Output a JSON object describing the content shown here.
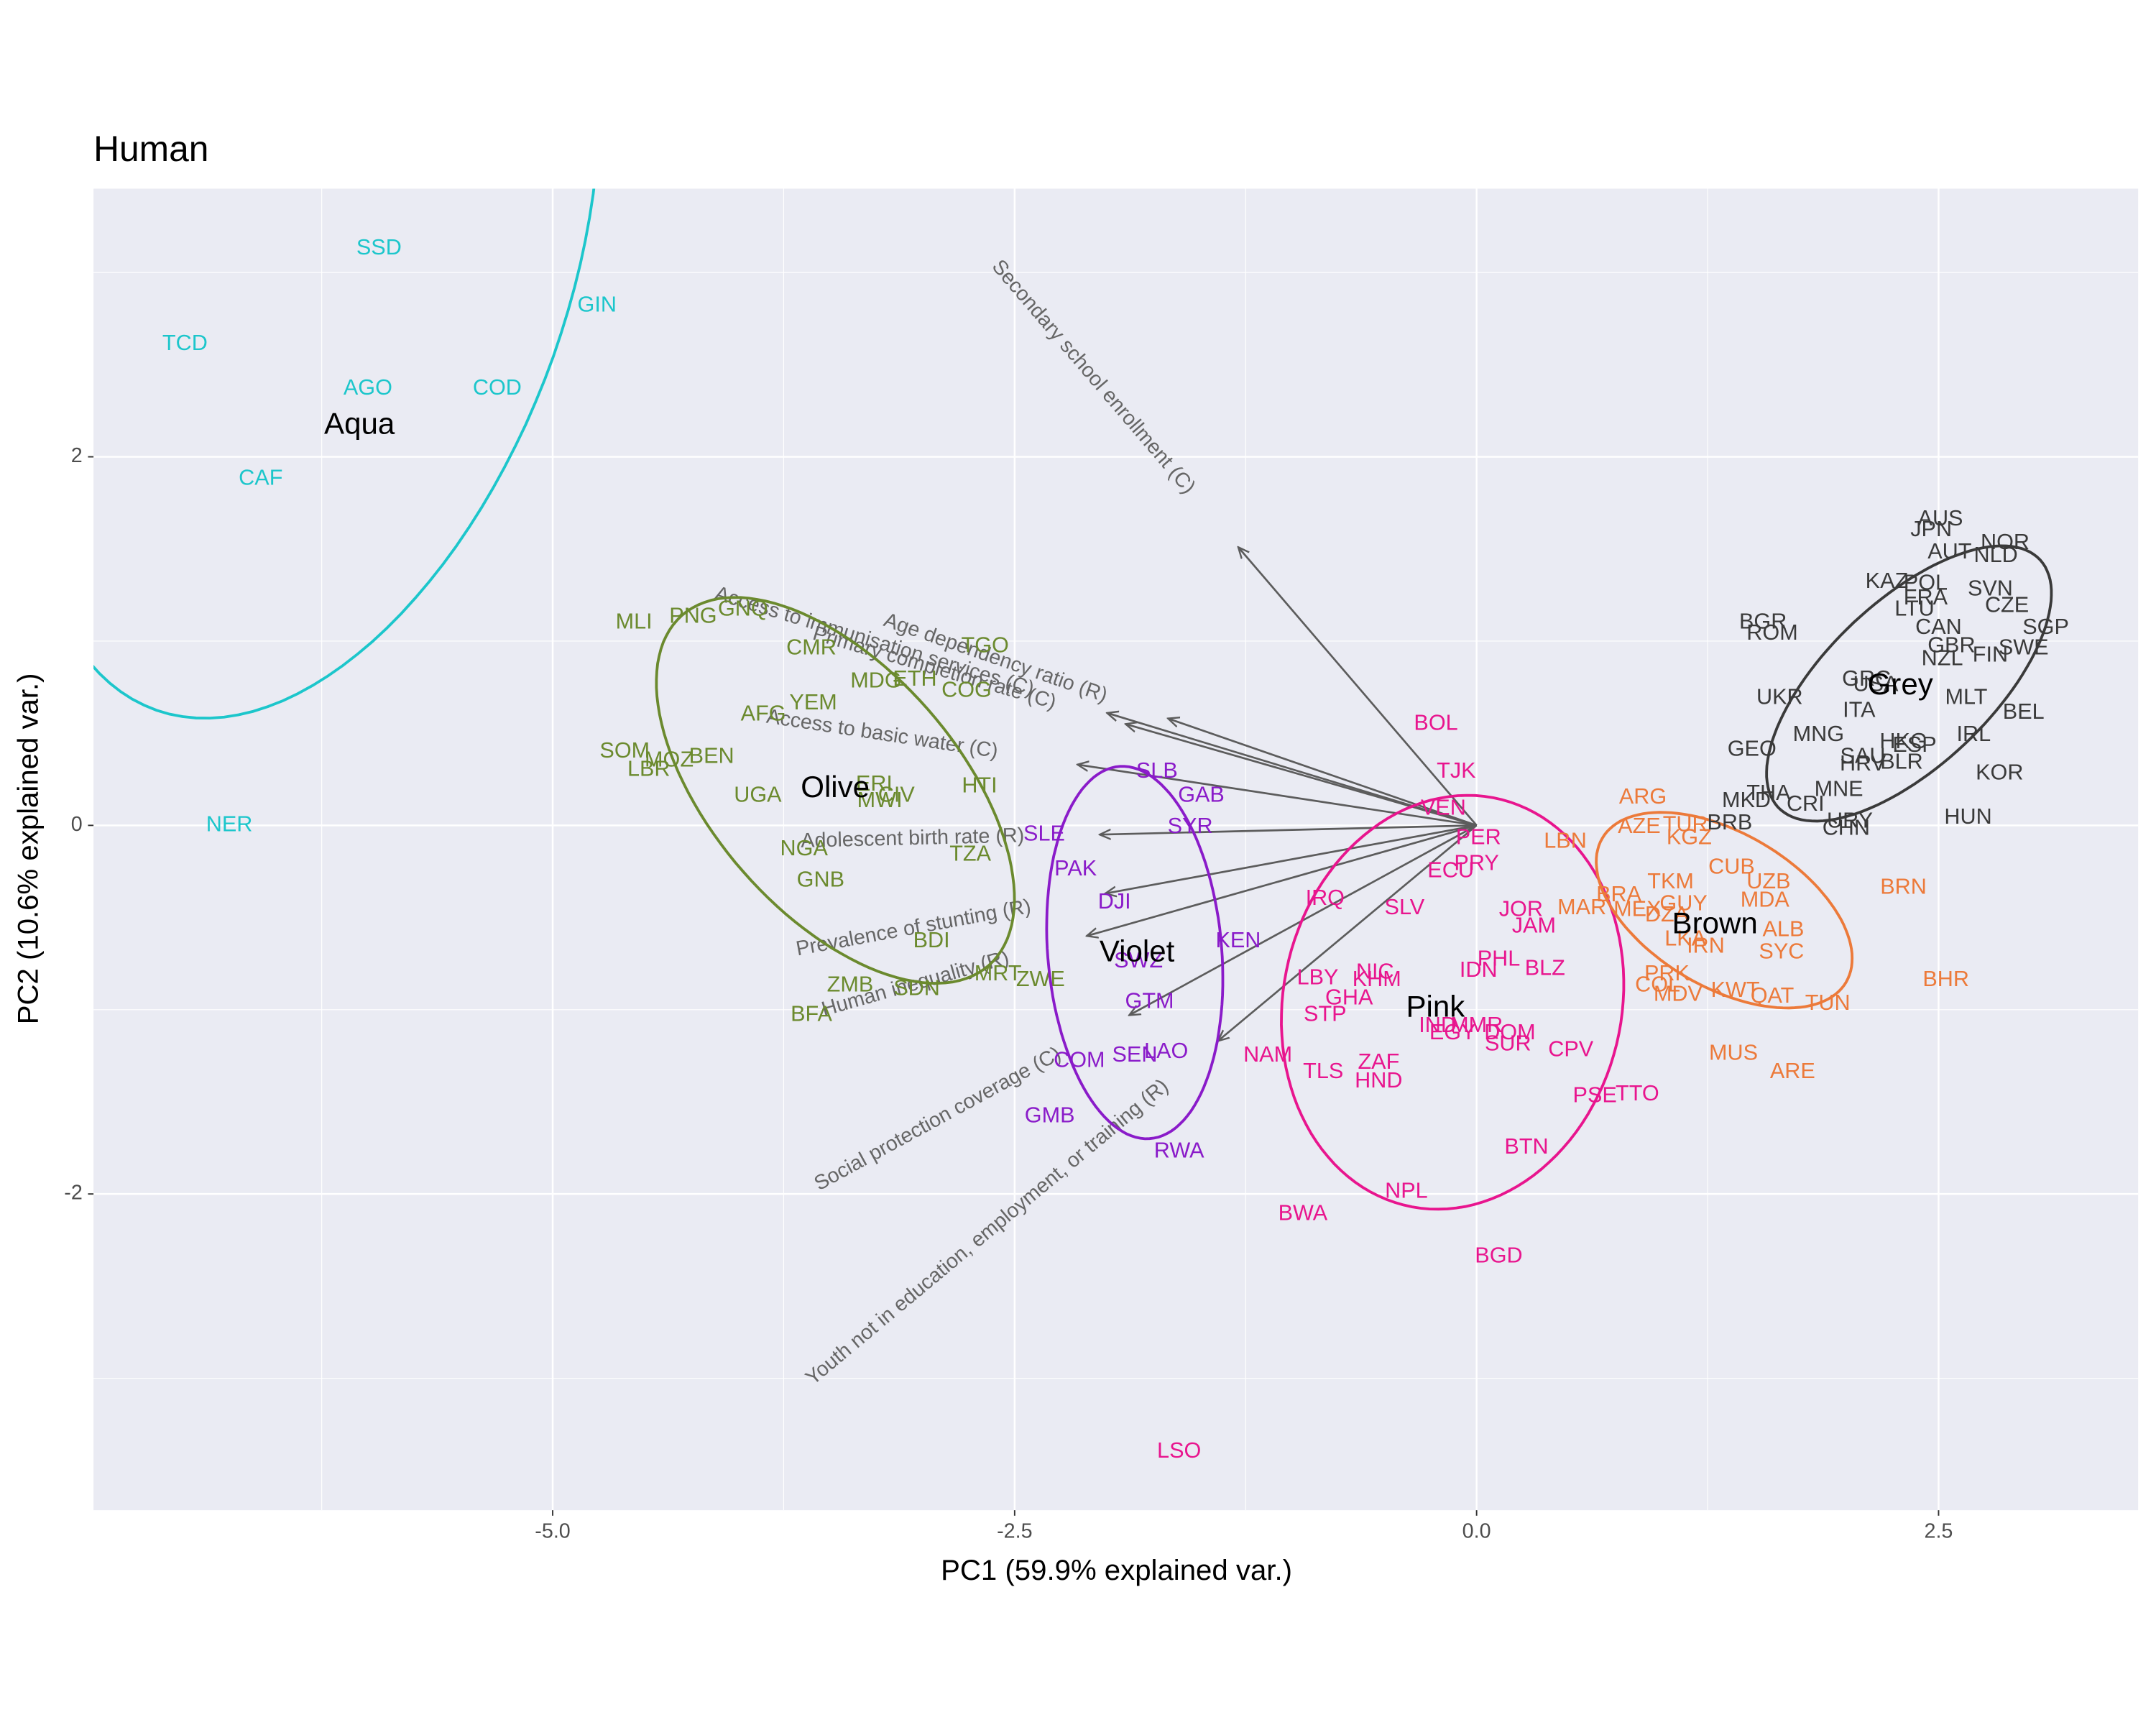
{
  "chart_data": {
    "type": "biplot",
    "title": "Human",
    "x_label": "PC1 (59.9% explained var.)",
    "y_label": "PC2 (10.6% explained var.)",
    "xlim": [
      -7.485,
      3.58
    ],
    "ylim": [
      -3.716,
      3.455
    ],
    "xticks": [
      {
        "value": -5,
        "label": "-5.0"
      },
      {
        "value": -2.5,
        "label": "-2.5"
      },
      {
        "value": 0,
        "label": "0.0"
      },
      {
        "value": 2.5,
        "label": "2.5"
      }
    ],
    "yticks": [
      -2,
      0,
      2
    ],
    "grid": true,
    "panel_color": "#EAEBF3",
    "arrow_color": "#5c5c5c",
    "arrow_label_color": "#666666",
    "series": [
      {
        "name": "Aqua",
        "color": "#1CC6CB",
        "labels": [
          "SSD",
          "GIN",
          "TCD",
          "AGO",
          "COD",
          "CAF",
          "NER"
        ],
        "x": [
          -5.94,
          -4.76,
          -6.99,
          -6.0,
          -5.3,
          -6.58,
          -6.75
        ],
        "y": [
          3.13,
          2.82,
          2.61,
          2.37,
          2.37,
          1.88,
          0.0
        ],
        "ellipse": {
          "center": [
            -6.3,
            3.0
          ],
          "axis1": [
            -0.4,
            -2.4
          ],
          "axis2": [
            1.5,
            0.3
          ]
        }
      },
      {
        "name": "Olive",
        "color": "#6B8A2E",
        "labels": [
          "MLI",
          "PNG",
          "GNQ",
          "CMR",
          "TGO",
          "YEM",
          "AFG",
          "MDG",
          "ETH",
          "COG",
          "SOM",
          "MOZ",
          "LBR",
          "BEN",
          "UGA",
          "ERI",
          "CIV",
          "MWI",
          "HTI",
          "NGA",
          "GNB",
          "TZA",
          "BDI",
          "ZMB",
          "SDN",
          "MRT",
          "ZWE",
          "BFA"
        ],
        "x": [
          -4.56,
          -4.24,
          -3.97,
          -3.6,
          -2.66,
          -3.59,
          -3.86,
          -3.25,
          -3.04,
          -2.76,
          -4.61,
          -4.37,
          -4.48,
          -4.14,
          -3.89,
          -3.26,
          -3.14,
          -3.23,
          -2.69,
          -3.64,
          -3.55,
          -2.74,
          -2.95,
          -3.39,
          -3.03,
          -2.59,
          -2.36,
          -3.6
        ],
        "y": [
          1.1,
          1.13,
          1.17,
          0.96,
          0.97,
          0.66,
          0.6,
          0.78,
          0.79,
          0.73,
          0.4,
          0.35,
          0.3,
          0.37,
          0.16,
          0.22,
          0.16,
          0.13,
          0.21,
          -0.13,
          -0.3,
          -0.16,
          -0.63,
          -0.87,
          -0.89,
          -0.81,
          -0.84,
          -1.03
        ],
        "ellipse": {
          "center": [
            -3.47,
            0.19
          ],
          "axis1": [
            0.83,
            -0.95
          ],
          "axis2": [
            0.5,
            0.44
          ]
        }
      },
      {
        "name": "Violet",
        "color": "#8A1BC9",
        "labels": [
          "SLB",
          "GAB",
          "SYR",
          "SLE",
          "PAK",
          "DJI",
          "KEN",
          "SWZ",
          "GTM",
          "COM",
          "SEN",
          "LAO",
          "GMB",
          "RWA"
        ],
        "x": [
          -1.73,
          -1.49,
          -1.55,
          -2.34,
          -2.17,
          -1.96,
          -1.29,
          -1.83,
          -1.77,
          -2.15,
          -1.85,
          -1.68,
          -2.31,
          -1.61
        ],
        "y": [
          0.29,
          0.16,
          -0.01,
          -0.05,
          -0.24,
          -0.42,
          -0.63,
          -0.74,
          -0.96,
          -1.28,
          -1.25,
          -1.23,
          -1.58,
          -1.77
        ],
        "ellipse": {
          "center": [
            -1.85,
            -0.69
          ],
          "axis1": [
            0.08,
            -1.01
          ],
          "axis2": [
            0.47,
            0.03
          ]
        }
      },
      {
        "name": "Pink",
        "color": "#E8158E",
        "labels": [
          "BOL",
          "TJK",
          "VEN",
          "PER",
          "PRY",
          "ECU",
          "IRQ",
          "SLV",
          "JOR",
          "JAM",
          "PHL",
          "IDN",
          "BLZ",
          "LBY",
          "NIC",
          "KHM",
          "GHA",
          "STP",
          "IND",
          "MMR",
          "EGY",
          "DOM",
          "SUR",
          "CPV",
          "NAM",
          "TLS",
          "ZAF",
          "HND",
          "PSE",
          "TTO",
          "BTN",
          "NPL",
          "BWA",
          "BGD",
          "LSO"
        ],
        "x": [
          -0.22,
          -0.11,
          -0.18,
          0.01,
          0.0,
          -0.14,
          -0.82,
          -0.39,
          0.24,
          0.31,
          0.12,
          0.01,
          0.37,
          -0.86,
          -0.55,
          -0.54,
          -0.69,
          -0.82,
          -0.21,
          0.0,
          -0.13,
          0.18,
          0.17,
          0.51,
          -1.13,
          -0.83,
          -0.53,
          -0.53,
          0.64,
          0.87,
          0.27,
          -0.38,
          -0.94,
          0.12,
          -1.61
        ],
        "y": [
          0.55,
          0.29,
          0.09,
          -0.07,
          -0.21,
          -0.25,
          -0.4,
          -0.45,
          -0.46,
          -0.55,
          -0.73,
          -0.79,
          -0.78,
          -0.83,
          -0.8,
          -0.84,
          -0.94,
          -1.03,
          -1.09,
          -1.09,
          -1.13,
          -1.13,
          -1.19,
          -1.22,
          -1.25,
          -1.34,
          -1.29,
          -1.39,
          -1.47,
          -1.46,
          -1.75,
          -1.99,
          -2.11,
          -2.34,
          -3.4
        ],
        "ellipse": {
          "center": [
            -0.13,
            -0.96
          ],
          "axis1": [
            0.22,
            1.11
          ],
          "axis2": [
            0.9,
            -0.17
          ]
        }
      },
      {
        "name": "Brown",
        "color": "#EC7A3A",
        "labels": [
          "ARG",
          "AZE",
          "LBN",
          "TUR",
          "KGZ",
          "CUB",
          "UZB",
          "TKM",
          "MAR",
          "BRA",
          "MEX",
          "GUY",
          "DZA",
          "MDA",
          "ALB",
          "LKA",
          "IRN",
          "SYC",
          "PRK",
          "COL",
          "MDV",
          "KWT",
          "QAT",
          "TUN",
          "MUS",
          "ARE",
          "BRN",
          "BHR"
        ],
        "x": [
          0.9,
          0.88,
          0.48,
          1.13,
          1.15,
          1.38,
          1.58,
          1.05,
          0.57,
          0.77,
          0.87,
          1.12,
          1.03,
          1.56,
          1.66,
          1.13,
          1.24,
          1.65,
          1.03,
          0.98,
          1.09,
          1.4,
          1.6,
          1.9,
          1.39,
          1.71,
          2.31,
          2.54
        ],
        "y": [
          0.15,
          -0.01,
          -0.09,
          0.0,
          -0.07,
          -0.23,
          -0.31,
          -0.31,
          -0.45,
          -0.38,
          -0.46,
          -0.43,
          -0.49,
          -0.41,
          -0.57,
          -0.62,
          -0.66,
          -0.69,
          -0.81,
          -0.87,
          -0.92,
          -0.9,
          -0.93,
          -0.97,
          -1.24,
          -1.34,
          -0.34,
          -0.84
        ],
        "ellipse": {
          "center": [
            1.34,
            -0.46
          ],
          "axis1": [
            0.66,
            -0.39
          ],
          "axis2": [
            0.21,
            0.36
          ]
        }
      },
      {
        "name": "Grey",
        "color": "#3A3A3A",
        "labels": [
          "AUS",
          "JPN",
          "NOR",
          "AUT",
          "NLD",
          "KAZ",
          "POL",
          "SVN",
          "FRA",
          "LTU",
          "CZE",
          "CAN",
          "SGP",
          "GBR",
          "SWE",
          "NZL",
          "FIN",
          "BGR",
          "ROM",
          "GRC",
          "USA",
          "UKR",
          "ITA",
          "MLT",
          "BEL",
          "MNG",
          "GEO",
          "IRL",
          "SAU",
          "HRV",
          "HKG",
          "ESP",
          "BLR",
          "THA",
          "MNE",
          "KOR",
          "MKD",
          "CRI",
          "BRB",
          "URY",
          "CHN",
          "HUN"
        ],
        "x": [
          2.51,
          2.46,
          2.86,
          2.56,
          2.81,
          2.22,
          2.43,
          2.78,
          2.43,
          2.37,
          2.87,
          2.5,
          3.08,
          2.57,
          2.96,
          2.52,
          2.78,
          1.55,
          1.6,
          2.11,
          2.16,
          1.64,
          2.07,
          2.65,
          2.96,
          1.85,
          1.49,
          2.69,
          2.09,
          2.09,
          2.31,
          2.37,
          2.3,
          1.58,
          1.96,
          2.83,
          1.46,
          1.78,
          1.37,
          2.02,
          2.0,
          2.66
        ],
        "y": [
          1.66,
          1.6,
          1.53,
          1.48,
          1.46,
          1.32,
          1.31,
          1.28,
          1.23,
          1.17,
          1.19,
          1.07,
          1.07,
          0.97,
          0.96,
          0.9,
          0.92,
          1.1,
          1.04,
          0.79,
          0.76,
          0.69,
          0.62,
          0.69,
          0.61,
          0.49,
          0.41,
          0.49,
          0.37,
          0.33,
          0.45,
          0.43,
          0.34,
          0.17,
          0.19,
          0.28,
          0.13,
          0.11,
          0.01,
          0.02,
          -0.02,
          0.04
        ],
        "ellipse": {
          "center": [
            2.34,
            0.77
          ],
          "axis1": [
            0.71,
            0.67
          ],
          "axis2": [
            0.3,
            -0.33
          ]
        }
      }
    ],
    "arrows": [
      {
        "label": "Secondary school enrollment (C)",
        "x": -1.29,
        "y": 1.51
      },
      {
        "label": "Access to immunisation services (C)",
        "x": -2.0,
        "y": 0.61
      },
      {
        "label": "Primary completion rate (C)",
        "x": -1.9,
        "y": 0.55
      },
      {
        "label": "Age dependency ratio (R)",
        "x": -1.67,
        "y": 0.58
      },
      {
        "label": "Access to basic water (C)",
        "x": -2.16,
        "y": 0.33
      },
      {
        "label": "Adolescent birth rate (R)",
        "x": -2.04,
        "y": -0.05
      },
      {
        "label": "Prevalence of stunting (R)",
        "x": -2.01,
        "y": -0.37
      },
      {
        "label": "Human inequality (R)",
        "x": -2.11,
        "y": -0.6
      },
      {
        "label": "Social protection coverage (C)",
        "x": -1.88,
        "y": -1.03
      },
      {
        "label": "Youth not in education, employment, or training (R)",
        "x": -1.4,
        "y": -1.17
      }
    ]
  }
}
